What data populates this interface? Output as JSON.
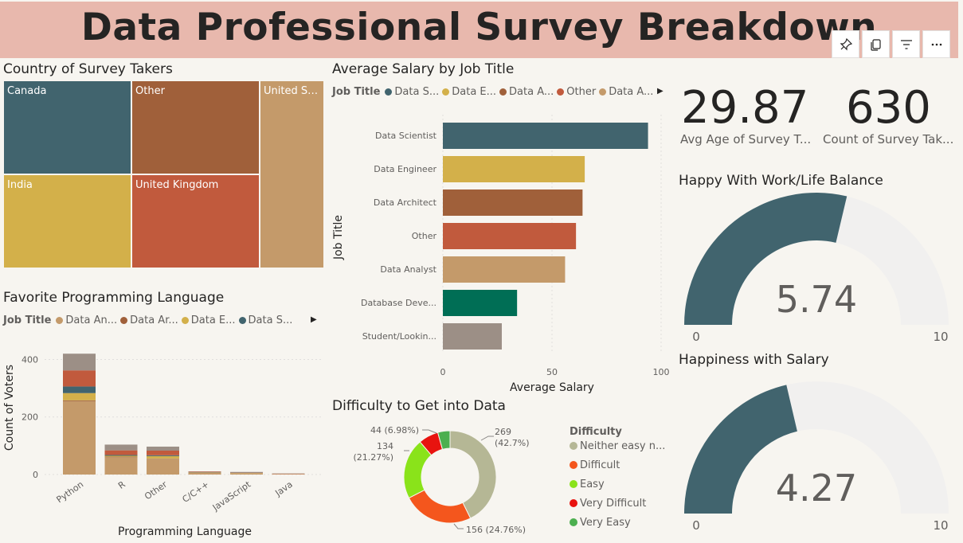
{
  "header": {
    "title": "Data Professional Survey Breakdown"
  },
  "toolbar": {
    "icons": [
      "pin-icon",
      "copy-icon",
      "filter-icon",
      "more-options-icon"
    ]
  },
  "treemap": {
    "title": "Country of Survey Takers",
    "cells": [
      {
        "label": "Canada",
        "color": "#41646e"
      },
      {
        "label": "Other",
        "color": "#a0603a"
      },
      {
        "label": "United St...",
        "color": "#c49a6a"
      },
      {
        "label": "India",
        "color": "#d3b04a"
      },
      {
        "label": "United Kingdom",
        "color": "#c15a3d"
      }
    ]
  },
  "salary": {
    "title": "Average Salary by Job Title",
    "legend_title": "Job Title",
    "legend": [
      {
        "label": "Data S...",
        "color": "#41646e"
      },
      {
        "label": "Data E...",
        "color": "#d3b04a"
      },
      {
        "label": "Data A...",
        "color": "#a0603a"
      },
      {
        "label": "Other",
        "color": "#c15a3d"
      },
      {
        "label": "Data A...",
        "color": "#c49a6a"
      }
    ]
  },
  "language": {
    "title": "Favorite Programming Language",
    "legend_title": "Job Title",
    "legend": [
      {
        "label": "Data An...",
        "color": "#c49a6a"
      },
      {
        "label": "Data Ar...",
        "color": "#a0603a"
      },
      {
        "label": "Data E...",
        "color": "#d3b04a"
      },
      {
        "label": "Data S...",
        "color": "#41646e"
      }
    ]
  },
  "kpis": [
    {
      "value": "29.87",
      "label": "Avg Age of Survey T..."
    },
    {
      "value": "630",
      "label": "Count of Survey Tak..."
    }
  ],
  "gauges": [
    {
      "title": "Happy With Work/Life Balance",
      "value": 5.74,
      "value_label": "5.74",
      "min_label": "0",
      "max_label": "10",
      "min": 0,
      "max": 10,
      "color": "#41646e"
    },
    {
      "title": "Happiness with Salary",
      "value": 4.27,
      "value_label": "4.27",
      "min_label": "0",
      "max_label": "10",
      "min": 0,
      "max": 10,
      "color": "#41646e"
    }
  ],
  "difficulty": {
    "title": "Difficulty to Get into Data",
    "legend_title": "Difficulty"
  },
  "chart_data": [
    {
      "type": "bar",
      "orientation": "horizontal",
      "title": "Average Salary by Job Title",
      "xlabel": "Average Salary",
      "ylabel": "Job Title",
      "categories": [
        "Data Scientist",
        "Data Engineer",
        "Data Architect",
        "Other",
        "Data Analyst",
        "Database Deve...",
        "Student/Lookin..."
      ],
      "values": [
        94,
        65,
        64,
        61,
        56,
        34,
        27
      ],
      "colors": [
        "#41646e",
        "#d3b04a",
        "#a0603a",
        "#c15a3d",
        "#c49a6a",
        "#006e55",
        "#9c8f86"
      ],
      "xlim": [
        0,
        100
      ],
      "xticks": [
        "0",
        "50",
        "100"
      ],
      "grid": true
    },
    {
      "type": "bar",
      "stacked": true,
      "title": "Favorite Programming Language",
      "xlabel": "Programming Language",
      "ylabel": "Count of Voters",
      "categories": [
        "Python",
        "R",
        "Other",
        "C/C++",
        "JavaScript",
        "Java"
      ],
      "series": [
        {
          "name": "Data An...",
          "color": "#c49a6a",
          "values": [
            255,
            60,
            55,
            6,
            5,
            2
          ]
        },
        {
          "name": "Data Ar...",
          "color": "#a0603a",
          "values": [
            3,
            2,
            1,
            0,
            0,
            0
          ]
        },
        {
          "name": "Data E...",
          "color": "#d3b04a",
          "values": [
            25,
            3,
            8,
            1,
            1,
            0
          ]
        },
        {
          "name": "Data S...",
          "color": "#41646e",
          "values": [
            23,
            3,
            3,
            1,
            1,
            0
          ]
        },
        {
          "name": "",
          "color": "#c15a3d",
          "values": [
            56,
            16,
            16,
            2,
            1,
            1
          ]
        },
        {
          "name": "",
          "color": "#9c8f86",
          "values": [
            58,
            20,
            14,
            1,
            1,
            1
          ]
        }
      ],
      "ylim": [
        0,
        440
      ],
      "yticks": [
        "0",
        "200",
        "400"
      ],
      "grid": true
    },
    {
      "type": "pie",
      "donut": true,
      "title": "Difficulty to Get into Data",
      "slices": [
        {
          "label": "Neither easy n...",
          "value": 269,
          "data_label": "269\n(42.7%)",
          "color": "#b5b795"
        },
        {
          "label": "Difficult",
          "value": 156,
          "data_label": "156 (24.76%)",
          "color": "#f4561d"
        },
        {
          "label": "Easy",
          "value": 134,
          "data_label": "134\n(21.27%)",
          "color": "#8ae31a"
        },
        {
          "label": "Very Difficult",
          "value": 44,
          "data_label": "44 (6.98%)",
          "color": "#e8130f"
        },
        {
          "label": "Very Easy",
          "value": 27,
          "data_label": "",
          "color": "#4caf4f"
        }
      ],
      "legend_position": "right"
    }
  ]
}
